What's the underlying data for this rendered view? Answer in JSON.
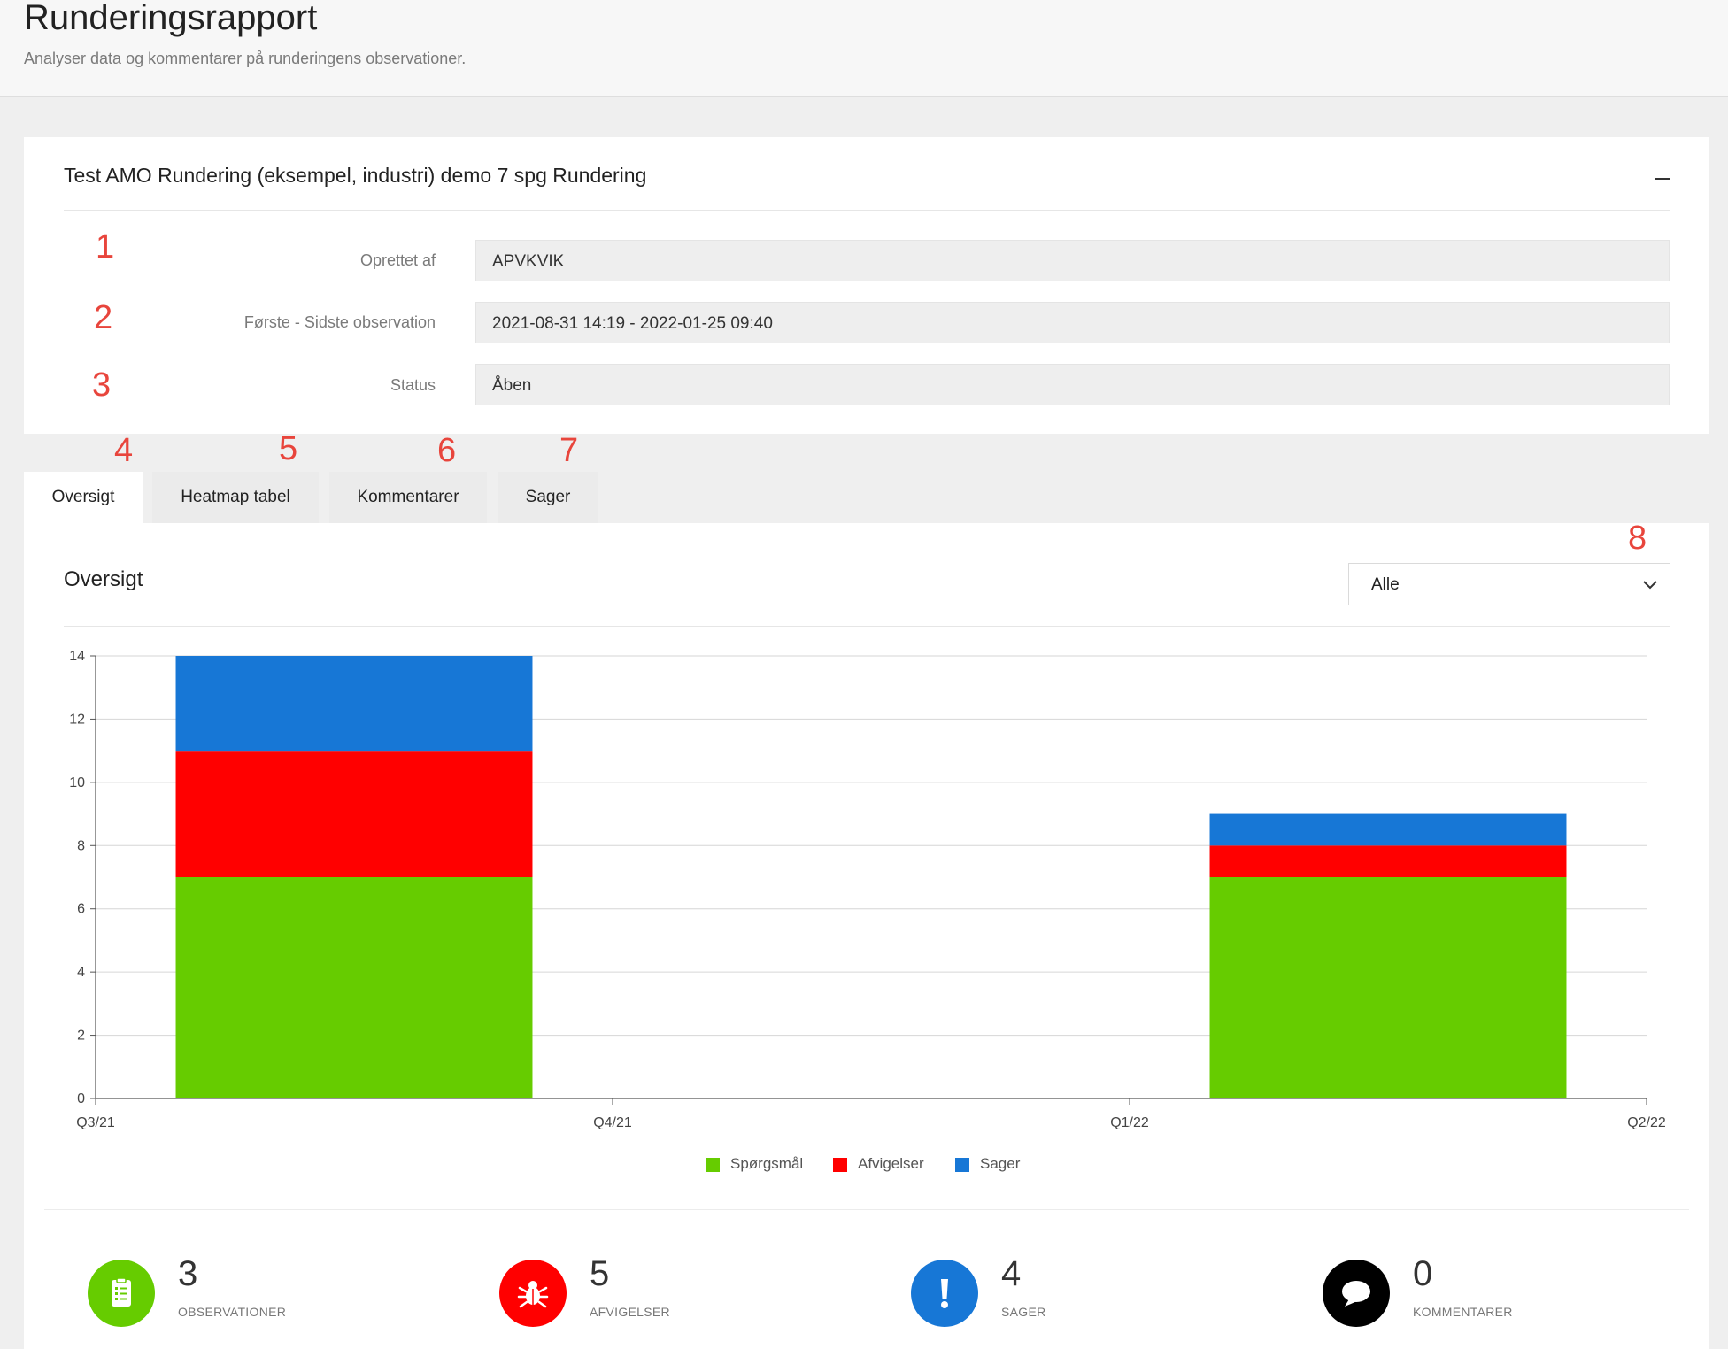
{
  "page": {
    "title": "Runderingsrapport",
    "subtitle": "Analyser data og kommentarer på runderingens observationer."
  },
  "card": {
    "title": "Test AMO Rundering (eksempel, industri) demo 7 spg Rundering",
    "collapse_icon": "minus-icon",
    "fields": [
      {
        "label": "Oprettet af",
        "value": "APVKVIK"
      },
      {
        "label": "Første - Sidste observation",
        "value": "2021-08-31 14:19 - 2022-01-25 09:40"
      },
      {
        "label": "Status",
        "value": "Åben"
      }
    ]
  },
  "annotations": [
    "1",
    "2",
    "3",
    "4",
    "5",
    "6",
    "7",
    "8"
  ],
  "tabs": [
    {
      "label": "Oversigt",
      "active": true
    },
    {
      "label": "Heatmap tabel",
      "active": false
    },
    {
      "label": "Kommentarer",
      "active": false
    },
    {
      "label": "Sager",
      "active": false
    }
  ],
  "overview": {
    "title": "Oversigt",
    "filter": {
      "selected": "Alle",
      "icon": "chevron-down-icon"
    }
  },
  "chart_data": {
    "type": "bar",
    "stacked": true,
    "x_ticks": [
      "Q3/21",
      "Q4/21",
      "Q1/22",
      "Q2/22"
    ],
    "categories": [
      "Q3/21",
      "Q1/22"
    ],
    "series": [
      {
        "name": "Spørgsmål",
        "color": "#66cc00",
        "values": [
          7,
          7
        ]
      },
      {
        "name": "Afvigelser",
        "color": "#ff0000",
        "values": [
          4,
          1
        ]
      },
      {
        "name": "Sager",
        "color": "#1777d6",
        "values": [
          3,
          1
        ]
      }
    ],
    "ylim": [
      0,
      14
    ],
    "y_ticks": [
      0,
      2,
      4,
      6,
      8,
      10,
      12,
      14
    ],
    "grid": true,
    "legend": "bottom"
  },
  "stats": [
    {
      "value": "3",
      "label": "OBSERVATIONER",
      "icon": "clipboard-list-icon",
      "color": "#66cc00"
    },
    {
      "value": "5",
      "label": "AFVIGELSER",
      "icon": "bug-icon",
      "color": "#ff0000"
    },
    {
      "value": "4",
      "label": "SAGER",
      "icon": "exclamation-icon",
      "color": "#1777d6"
    },
    {
      "value": "0",
      "label": "KOMMENTARER",
      "icon": "comment-icon",
      "color": "#000000"
    }
  ]
}
